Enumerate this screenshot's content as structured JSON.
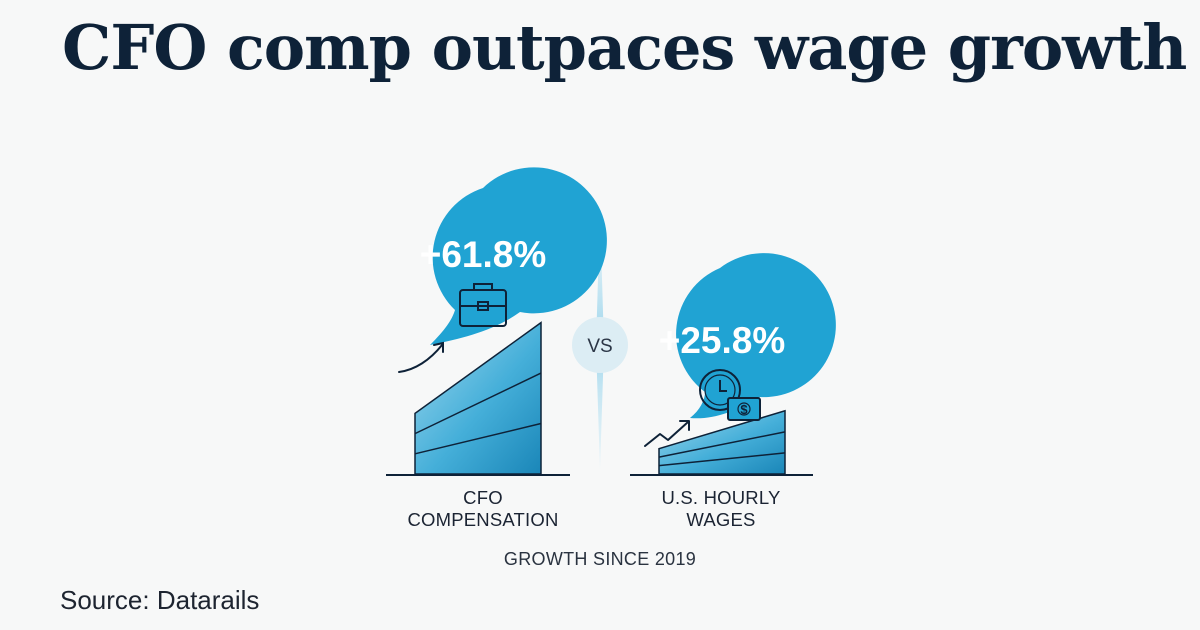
{
  "title": "CFO comp outpaces wage growth",
  "source": "Source: Datarails",
  "chart_data": {
    "type": "bar",
    "categories": [
      "CFO COMPENSATION",
      "U.S. HOURLY WAGES"
    ],
    "category_lines": [
      [
        "CFO",
        "COMPENSATION"
      ],
      [
        "U.S. HOURLY",
        "WAGES"
      ]
    ],
    "values": [
      61.8,
      25.8
    ],
    "value_labels": [
      "+61.8%",
      "+25.8%"
    ],
    "unit": "%",
    "icons": [
      "briefcase-icon",
      "clock-money-icon"
    ],
    "divider_label": "VS",
    "subtitle": "GROWTH SINCE 2019",
    "xlabel": "",
    "ylabel": "",
    "colors": {
      "bubble": "#20a3d3",
      "bar_light": "#7fcbe8",
      "bar_dark": "#1d8fc0",
      "bar_stroke": "#0e2238",
      "text_dark": "#0e2238"
    }
  }
}
